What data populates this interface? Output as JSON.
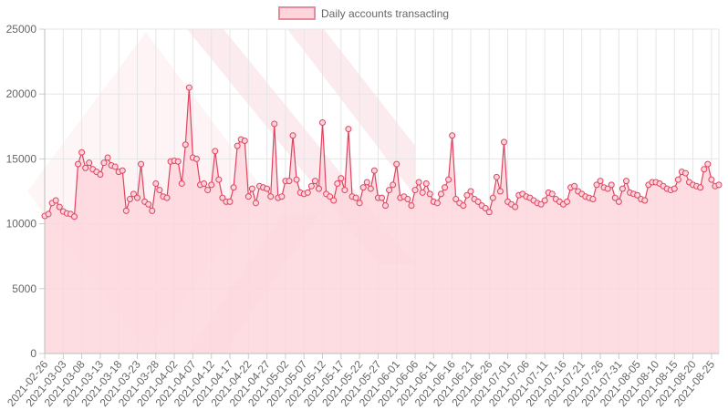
{
  "chart_data": {
    "type": "area",
    "legend": {
      "position": "top"
    },
    "grid": true,
    "ylim": [
      0,
      25000
    ],
    "y_ticks": [
      0,
      5000,
      10000,
      15000,
      20000,
      25000
    ],
    "x_tick_labels": [
      "2021-02-26",
      "2021-03-03",
      "2021-03-08",
      "2021-03-13",
      "2021-03-18",
      "2021-03-23",
      "2021-03-28",
      "2021-04-02",
      "2021-04-07",
      "2021-04-12",
      "2021-04-17",
      "2021-04-22",
      "2021-04-27",
      "2021-05-02",
      "2021-05-07",
      "2021-05-12",
      "2021-05-17",
      "2021-05-22",
      "2021-05-27",
      "2021-06-01",
      "2021-06-06",
      "2021-06-11",
      "2021-06-16",
      "2021-06-21",
      "2021-06-26",
      "2021-07-01",
      "2021-07-06",
      "2021-07-11",
      "2021-07-16",
      "2021-07-21",
      "2021-07-26",
      "2021-07-31",
      "2021-08-05",
      "2021-08-10",
      "2021-08-15",
      "2021-08-20",
      "2021-08-25"
    ],
    "x_start": "2021-02-26",
    "x_end": "2021-08-26",
    "series": [
      {
        "name": "Daily accounts transacting",
        "color": "#e0435f",
        "fill": "#fdd6dd",
        "values": [
          10600,
          10750,
          11600,
          11800,
          11300,
          10950,
          10800,
          10750,
          10550,
          14600,
          15500,
          14300,
          14700,
          14200,
          14000,
          13800,
          14700,
          15100,
          14500,
          14400,
          14000,
          14100,
          11000,
          11900,
          12300,
          12000,
          14600,
          11700,
          11500,
          11000,
          13100,
          12600,
          12100,
          12000,
          14800,
          14850,
          14800,
          13100,
          16100,
          20500,
          15100,
          15000,
          13000,
          13100,
          12600,
          13000,
          15600,
          13400,
          12000,
          11700,
          11700,
          12800,
          16000,
          16500,
          16400,
          12100,
          12700,
          11600,
          12900,
          12800,
          12700,
          12100,
          17700,
          12000,
          12100,
          13300,
          13300,
          16800,
          13400,
          12400,
          12300,
          12400,
          12900,
          13300,
          12700,
          17800,
          12300,
          12100,
          11800,
          13100,
          13500,
          12600,
          17300,
          12100,
          12000,
          11600,
          12800,
          13200,
          12700,
          14100,
          12000,
          12000,
          11400,
          12600,
          13000,
          14600,
          12000,
          12100,
          11900,
          11400,
          12600,
          13200,
          12400,
          13100,
          12300,
          11700,
          11600,
          12300,
          12800,
          13400,
          16800,
          11900,
          11600,
          11400,
          12200,
          12500,
          11900,
          11700,
          11400,
          11200,
          10900,
          12000,
          13600,
          12500,
          16300,
          11700,
          11500,
          11300,
          12200,
          12300,
          12100,
          12000,
          11800,
          11600,
          11500,
          11800,
          12400,
          12300,
          11900,
          11700,
          11500,
          11700,
          12800,
          12900,
          12500,
          12300,
          12100,
          12000,
          11900,
          13000,
          13300,
          12800,
          12700,
          13000,
          12000,
          11700,
          12700,
          13300,
          12400,
          12300,
          12200,
          11900,
          11800,
          13000,
          13200,
          13200,
          13100,
          12900,
          12700,
          12600,
          12700,
          13400,
          14000,
          13900,
          13200,
          13000,
          12900,
          12800,
          14200,
          14600,
          13400,
          12900,
          13000
        ]
      }
    ]
  }
}
